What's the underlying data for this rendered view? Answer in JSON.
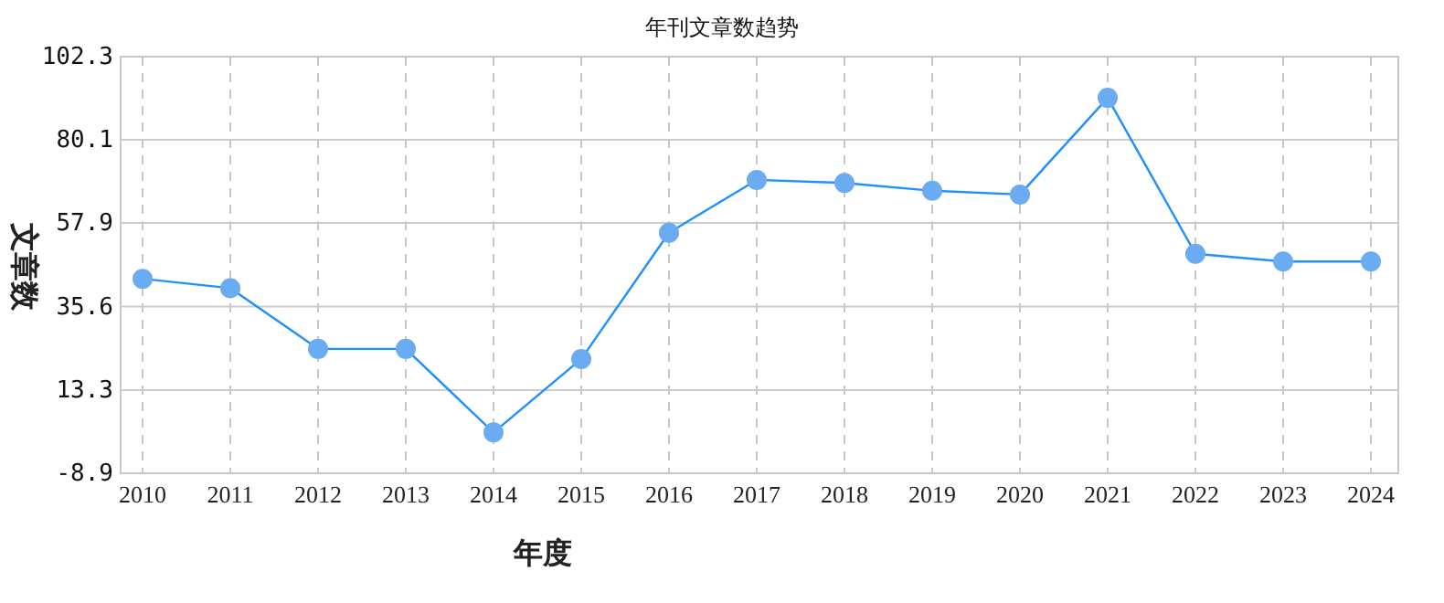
{
  "chart_data": {
    "type": "line",
    "title": "年刊文章数趋势",
    "xlabel": "年度",
    "ylabel": "文章数",
    "categories": [
      "2010",
      "2011",
      "2012",
      "2013",
      "2014",
      "2015",
      "2016",
      "2017",
      "2018",
      "2019",
      "2020",
      "2021",
      "2022",
      "2023",
      "2024"
    ],
    "series": [
      {
        "color": "#1e90ff",
        "values": [
          43,
          40.5,
          24.3,
          24.3,
          2,
          21.6,
          55.3,
          69.4,
          68.6,
          66.5,
          65.5,
          91.3,
          49.7,
          47.6,
          47.6
        ]
      }
    ],
    "ylim": [
      -8.9,
      102.3
    ],
    "yticks": [
      -8.9,
      13.3,
      35.6,
      57.9,
      80.1,
      102.3
    ],
    "grid": true,
    "marker": "circle",
    "line_style": "solid"
  }
}
